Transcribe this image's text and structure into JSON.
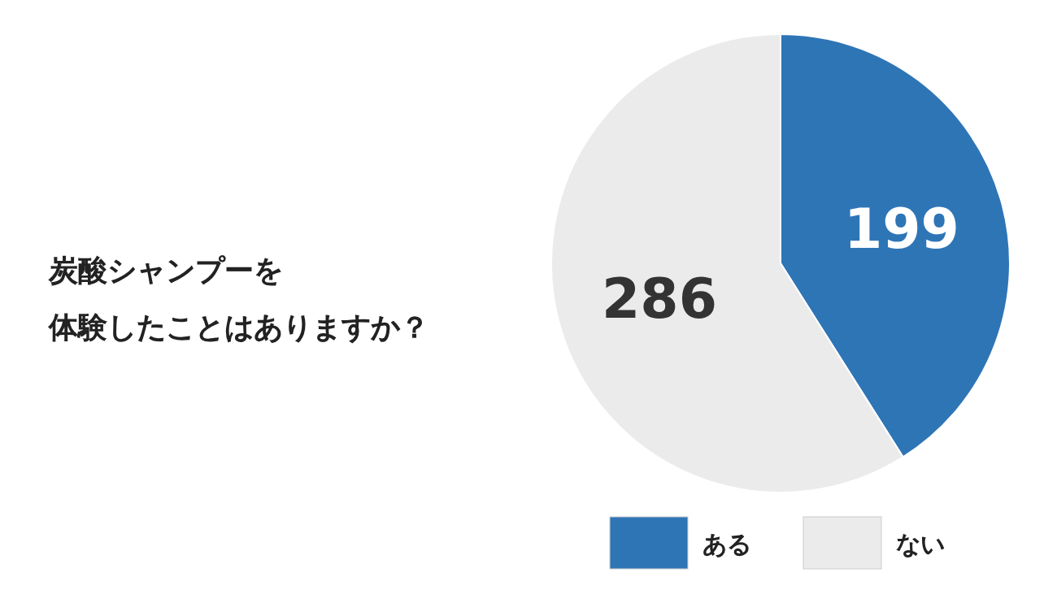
{
  "chart_data": {
    "type": "pie",
    "title": "炭酸シャンプーを",
    "subtitle": "体験したことはありますか？",
    "categories": [
      "ある",
      "ない"
    ],
    "values": [
      199,
      286
    ],
    "colors": [
      "#2e75b6",
      "#ebebeb"
    ],
    "data_labels": true,
    "legend": "bottom"
  }
}
